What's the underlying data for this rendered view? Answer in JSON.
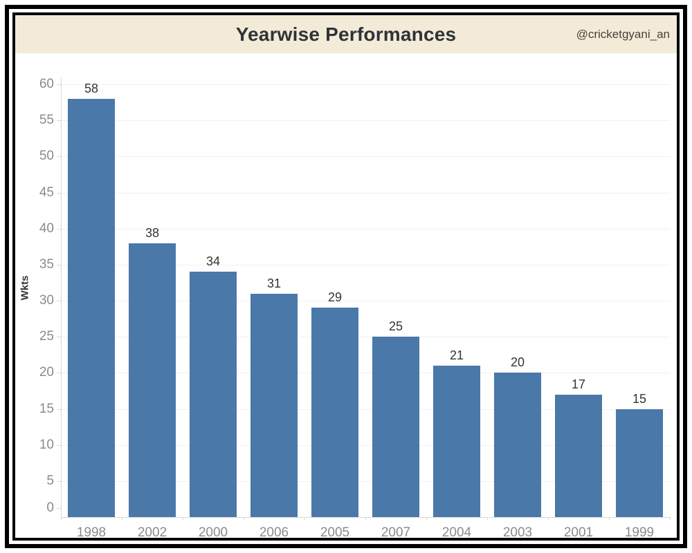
{
  "header": {
    "title": "Yearwise Performances",
    "watermark": "@cricketgyani_an"
  },
  "chart_data": {
    "type": "bar",
    "title": "Yearwise Performances",
    "categories": [
      "1998",
      "2002",
      "2000",
      "2006",
      "2005",
      "2007",
      "2004",
      "2003",
      "2001",
      "1999"
    ],
    "values": [
      58,
      38,
      34,
      31,
      29,
      25,
      21,
      20,
      17,
      15
    ],
    "xlabel": "",
    "ylabel": "Wkts",
    "ylim": [
      0,
      60
    ],
    "yticks": [
      0,
      5,
      10,
      15,
      20,
      25,
      30,
      35,
      40,
      45,
      50,
      55,
      60
    ],
    "grid": true,
    "legend_position": "none",
    "data_labels": true
  },
  "colors": {
    "bar": "#4a78a8",
    "header_bg": "#f3ebd7",
    "title_text": "#2e3338",
    "watermark_text": "#47433a",
    "axis_text": "#8b8b8b",
    "data_label_text": "#333333",
    "gridline": "#f0f0f0",
    "axis_line": "#d9d9d9",
    "frame_border": "#000000",
    "chart_bg": "#ffffff"
  }
}
